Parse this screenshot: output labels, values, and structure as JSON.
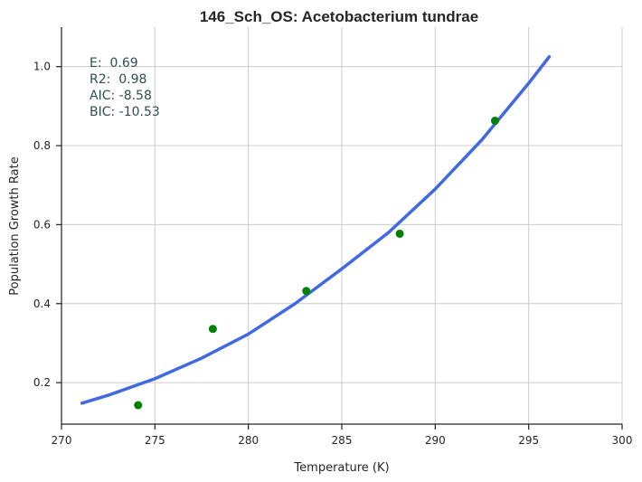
{
  "chart_data": {
    "type": "scatter",
    "title": "146_Sch_OS: Acetobacterium tundrae",
    "xlabel": "Temperature (K)",
    "ylabel": "Population Growth Rate",
    "xlim": [
      270,
      300
    ],
    "ylim": [
      0.095,
      1.1
    ],
    "xticks": [
      270,
      275,
      280,
      285,
      290,
      295,
      300
    ],
    "yticks": [
      0.2,
      0.4,
      0.6,
      0.8,
      1.0
    ],
    "xtick_labels": [
      "270",
      "275",
      "280",
      "285",
      "290",
      "295",
      "300"
    ],
    "ytick_labels": [
      "0.2",
      "0.4",
      "0.6",
      "0.8",
      "1.0"
    ],
    "grid": true,
    "series": [
      {
        "kind": "scatter",
        "color": "#008000",
        "x": [
          274.1,
          278.1,
          283.1,
          288.1,
          293.2
        ],
        "y": [
          0.143,
          0.336,
          0.432,
          0.577,
          0.863
        ]
      },
      {
        "kind": "line",
        "color": "#4169e1",
        "x": [
          271.1,
          272.5,
          275.0,
          277.5,
          280.0,
          282.5,
          285.0,
          287.5,
          290.0,
          292.5,
          295.0,
          296.1
        ],
        "y": [
          0.148,
          0.168,
          0.21,
          0.262,
          0.323,
          0.4,
          0.488,
          0.58,
          0.69,
          0.815,
          0.958,
          1.025
        ]
      }
    ],
    "annotations": [
      "E:  0.69",
      "R2:  0.98",
      "AIC: -8.58",
      "BIC: -10.53"
    ]
  }
}
